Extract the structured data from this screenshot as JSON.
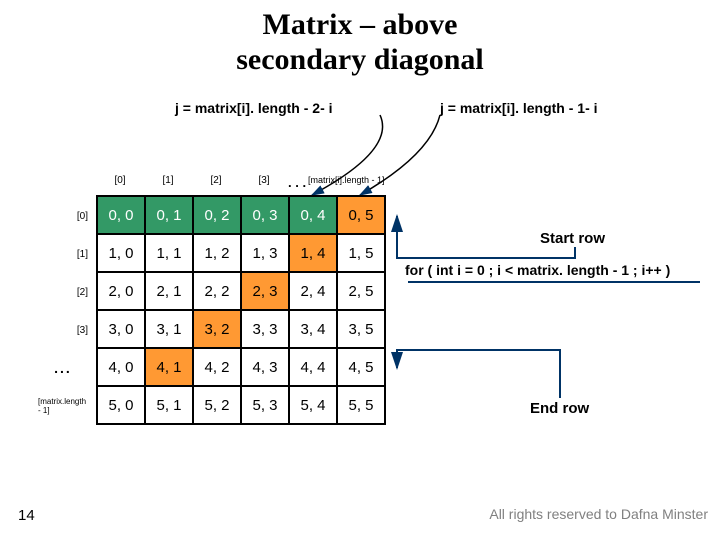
{
  "title_line1": "Matrix – above",
  "title_line2": "secondary  diagonal",
  "top_label_left": "j = matrix[i]. length - 2- i",
  "top_label_right": "j = matrix[i]. length - 1- i",
  "col_headers": [
    "[0]",
    "[1]",
    "[2]",
    "[3]"
  ],
  "col_header_last": "[matrix[i].length - 1]",
  "row_headers": [
    "[0]",
    "[1]",
    "[2]",
    "[3]"
  ],
  "row_header_last": "[matrix.length - 1]",
  "ellipsis": ". . .",
  "vellipsis": "...",
  "matrix": {
    "rows": 6,
    "cols": 6,
    "cells": [
      [
        "0, 0",
        "0, 1",
        "0, 2",
        "0, 3",
        "0, 4",
        "0, 5"
      ],
      [
        "1, 0",
        "1, 1",
        "1, 2",
        "1, 3",
        "1, 4",
        "1, 5"
      ],
      [
        "2, 0",
        "2, 1",
        "2, 2",
        "2, 3",
        "2, 4",
        "2, 5"
      ],
      [
        "3, 0",
        "3, 1",
        "3, 2",
        "3, 3",
        "3, 4",
        "3, 5"
      ],
      [
        "4, 0",
        "4, 1",
        "4, 2",
        "4, 3",
        "4, 4",
        "4, 5"
      ],
      [
        "5, 0",
        "5, 1",
        "5, 2",
        "5, 3",
        "5, 4",
        "5, 5"
      ]
    ],
    "green_mask": [
      [
        1,
        1,
        1,
        1,
        1,
        0
      ],
      [
        0,
        0,
        0,
        0,
        0,
        0
      ],
      [
        0,
        0,
        0,
        0,
        0,
        0
      ],
      [
        0,
        0,
        0,
        0,
        0,
        0
      ],
      [
        0,
        0,
        0,
        0,
        0,
        0
      ],
      [
        0,
        0,
        0,
        0,
        0,
        0
      ]
    ],
    "orange_mask": [
      [
        0,
        0,
        0,
        0,
        0,
        1
      ],
      [
        0,
        0,
        0,
        0,
        1,
        0
      ],
      [
        0,
        0,
        0,
        1,
        0,
        0
      ],
      [
        0,
        0,
        1,
        0,
        0,
        0
      ],
      [
        0,
        1,
        0,
        0,
        0,
        0
      ],
      [
        0,
        0,
        0,
        0,
        0,
        0
      ]
    ]
  },
  "colors": {
    "green": "#339966",
    "orange": "#ff9933",
    "arrow_navy": "#003366",
    "cell_border": "#000000",
    "background": "#ffffff",
    "copyright": "#808080"
  },
  "start_row_label": "Start row",
  "for_loop_code": "for ( int i = 0 ; i < matrix. length - 1 ; i++ )",
  "end_row_label": "End row",
  "slide_number": "14",
  "copyright": "All rights reserved to Dafna Minster"
}
